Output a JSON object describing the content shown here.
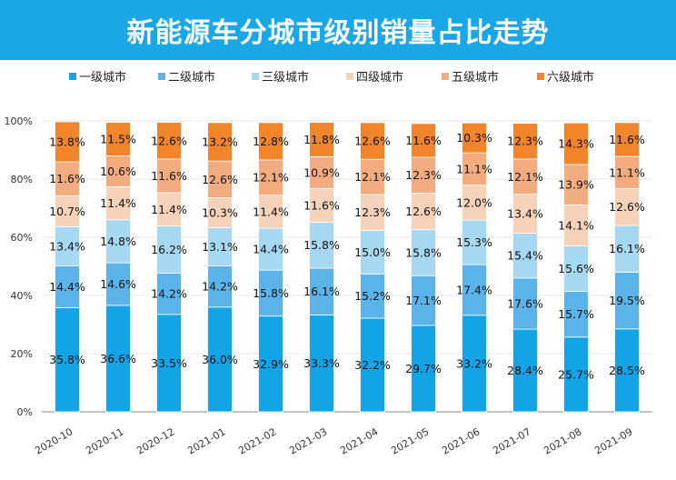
{
  "title": "新能源车分城市级别销量占比走势",
  "colors": {
    "title_bar": "#1aa7e6",
    "series": [
      "#12a4e6",
      "#5cb3ea",
      "#a7d8f1",
      "#f7d2bb",
      "#f3ab80",
      "#f1852c"
    ]
  },
  "chart_data": {
    "type": "bar",
    "stacked": true,
    "title": "新能源车分城市级别销量占比走势",
    "categories": [
      "2020-10",
      "2020-11",
      "2020-12",
      "2021-01",
      "2021-02",
      "2021-03",
      "2021-04",
      "2021-05",
      "2021-06",
      "2021-07",
      "2021-08",
      "2021-09"
    ],
    "series": [
      {
        "name": "一级城市",
        "values": [
          35.8,
          36.6,
          33.5,
          36.0,
          32.9,
          33.3,
          32.2,
          29.7,
          33.2,
          28.4,
          25.7,
          28.5
        ]
      },
      {
        "name": "二级城市",
        "values": [
          14.4,
          14.6,
          14.2,
          14.2,
          15.8,
          16.1,
          15.2,
          17.1,
          17.4,
          17.6,
          15.7,
          19.5
        ]
      },
      {
        "name": "三级城市",
        "values": [
          13.4,
          14.8,
          16.2,
          13.1,
          14.4,
          15.8,
          15.0,
          15.8,
          15.3,
          15.4,
          15.6,
          16.1
        ]
      },
      {
        "name": "四级城市",
        "values": [
          10.7,
          11.4,
          11.4,
          10.3,
          11.4,
          11.6,
          12.3,
          12.6,
          12.0,
          13.4,
          14.1,
          12.6
        ]
      },
      {
        "name": "五级城市",
        "values": [
          11.6,
          10.6,
          11.6,
          12.6,
          12.1,
          10.9,
          12.1,
          12.3,
          11.1,
          12.1,
          13.9,
          11.1
        ]
      },
      {
        "name": "六级城市",
        "values": [
          13.8,
          11.5,
          12.6,
          13.2,
          12.8,
          11.8,
          12.6,
          11.6,
          10.3,
          12.3,
          14.3,
          11.6
        ]
      }
    ],
    "ylim": [
      0,
      100
    ],
    "yticks": [
      "0%",
      "20%",
      "40%",
      "60%",
      "80%",
      "100%"
    ],
    "grid": true,
    "legend_position": "top"
  }
}
